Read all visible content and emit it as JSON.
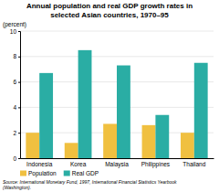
{
  "chart_data": {
    "type": "bar",
    "title": "Annual population and real GDP growth rates in\nselected Asian countries, 1970–95",
    "ylabel": "(percent)",
    "categories": [
      "Indonesia",
      "Korea",
      "Malaysia",
      "Philippines",
      "Thailand"
    ],
    "series": [
      {
        "name": "Population",
        "color": "#F0C040",
        "values": [
          2.0,
          1.2,
          2.7,
          2.6,
          2.0
        ]
      },
      {
        "name": "Real GDP",
        "color": "#2AADA4",
        "values": [
          6.7,
          8.5,
          7.3,
          3.4,
          7.5
        ]
      }
    ],
    "ylim": [
      0,
      10
    ],
    "yticks": [
      0,
      2,
      4,
      6,
      8,
      10
    ],
    "grid": true,
    "legend": "bottom",
    "source": "Source: International Monetary Fund, 1997, International Financial Statistics Yearbook\n(Washington)."
  }
}
